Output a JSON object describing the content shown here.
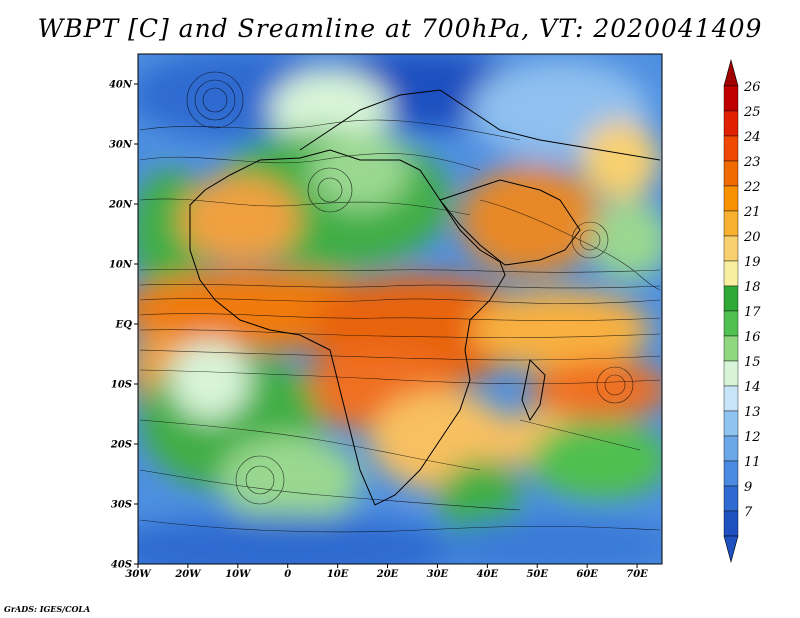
{
  "title": "WBPT [C] and Sreamline at 700hPa, VT: 2020041409",
  "credit": "GrADS: IGES/COLA",
  "map": {
    "lon_range": [
      -30,
      75
    ],
    "lat_range": [
      -40,
      45
    ],
    "lon_ticks": [
      "30W",
      "20W",
      "10W",
      "0",
      "10E",
      "20E",
      "30E",
      "40E",
      "50E",
      "60E",
      "70E"
    ],
    "lat_ticks": [
      "40N",
      "30N",
      "20N",
      "10N",
      "EQ",
      "10S",
      "20S",
      "30S",
      "40S"
    ]
  },
  "colorbar": {
    "levels": [
      "26",
      "25",
      "24",
      "23",
      "22",
      "21",
      "20",
      "19",
      "18",
      "17",
      "16",
      "15",
      "14",
      "13",
      "12",
      "11",
      "9",
      "7"
    ],
    "colors": [
      "#c00000",
      "#e02000",
      "#f04800",
      "#f06a00",
      "#f89000",
      "#f8b030",
      "#f8d070",
      "#f8f0a0",
      "#2ea836",
      "#50c050",
      "#90d880",
      "#d8f4d8",
      "#c8e4f8",
      "#90c4f0",
      "#6aa6e8",
      "#4a8ae0",
      "#2e6ad0",
      "#1e50c0"
    ],
    "top_arrow_color": "#a00000",
    "bottom_arrow_color": "#1e50c0"
  },
  "colors": {
    "ocean_cool": "#3a7ad8",
    "land_green": "#3fae45",
    "warm_orange": "#e8862a"
  }
}
